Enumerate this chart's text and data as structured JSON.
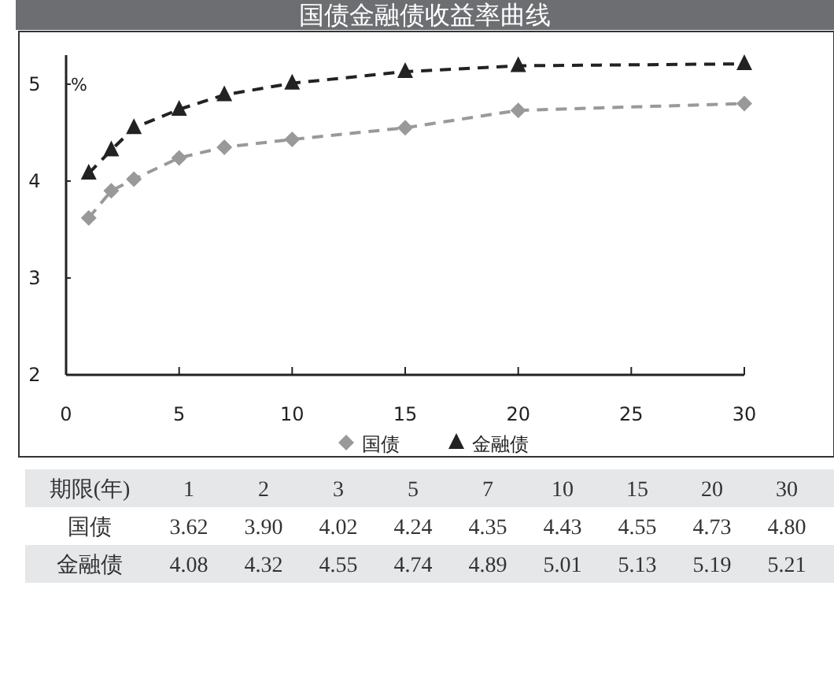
{
  "chart_data": [
    {
      "type": "line",
      "title": "国债金融债收益率曲线",
      "ylabel": "%",
      "x": [
        1,
        2,
        3,
        5,
        7,
        10,
        15,
        20,
        30
      ],
      "xlim": [
        0,
        30
      ],
      "xticks": [
        0,
        5,
        10,
        15,
        20,
        25,
        30
      ],
      "ylim": [
        2,
        5.3
      ],
      "yticks": [
        2,
        3,
        4,
        5
      ],
      "series": [
        {
          "name": "国债",
          "color": "#999999",
          "marker": "diamond",
          "values": [
            3.62,
            3.9,
            4.02,
            4.24,
            4.35,
            4.43,
            4.55,
            4.73,
            4.8
          ]
        },
        {
          "name": "金融债",
          "color": "#222222",
          "marker": "triangle",
          "values": [
            4.08,
            4.32,
            4.55,
            4.74,
            4.89,
            5.01,
            5.13,
            5.19,
            5.21
          ]
        }
      ],
      "line_style": "dashed",
      "legend": "bottom",
      "grid": false
    },
    {
      "type": "other",
      "annotations": [
        "期限(年)"
      ],
      "categories": [
        "1",
        "2",
        "3",
        "5",
        "7",
        "10",
        "15",
        "20",
        "30"
      ],
      "series": [
        {
          "name": "国债",
          "values": [
            3.62,
            3.9,
            4.02,
            4.24,
            4.35,
            4.43,
            4.55,
            4.73,
            4.8
          ],
          "value_labels": [
            "3.62",
            "3.90",
            "4.02",
            "4.24",
            "4.35",
            "4.43",
            "4.55",
            "4.73",
            "4.80"
          ]
        },
        {
          "name": "金融债",
          "values": [
            4.08,
            4.32,
            4.55,
            4.74,
            4.89,
            5.01,
            5.13,
            5.19,
            5.21
          ],
          "value_labels": [
            "4.08",
            "4.32",
            "4.55",
            "4.74",
            "4.89",
            "5.01",
            "5.13",
            "5.19",
            "5.21"
          ]
        }
      ]
    }
  ]
}
